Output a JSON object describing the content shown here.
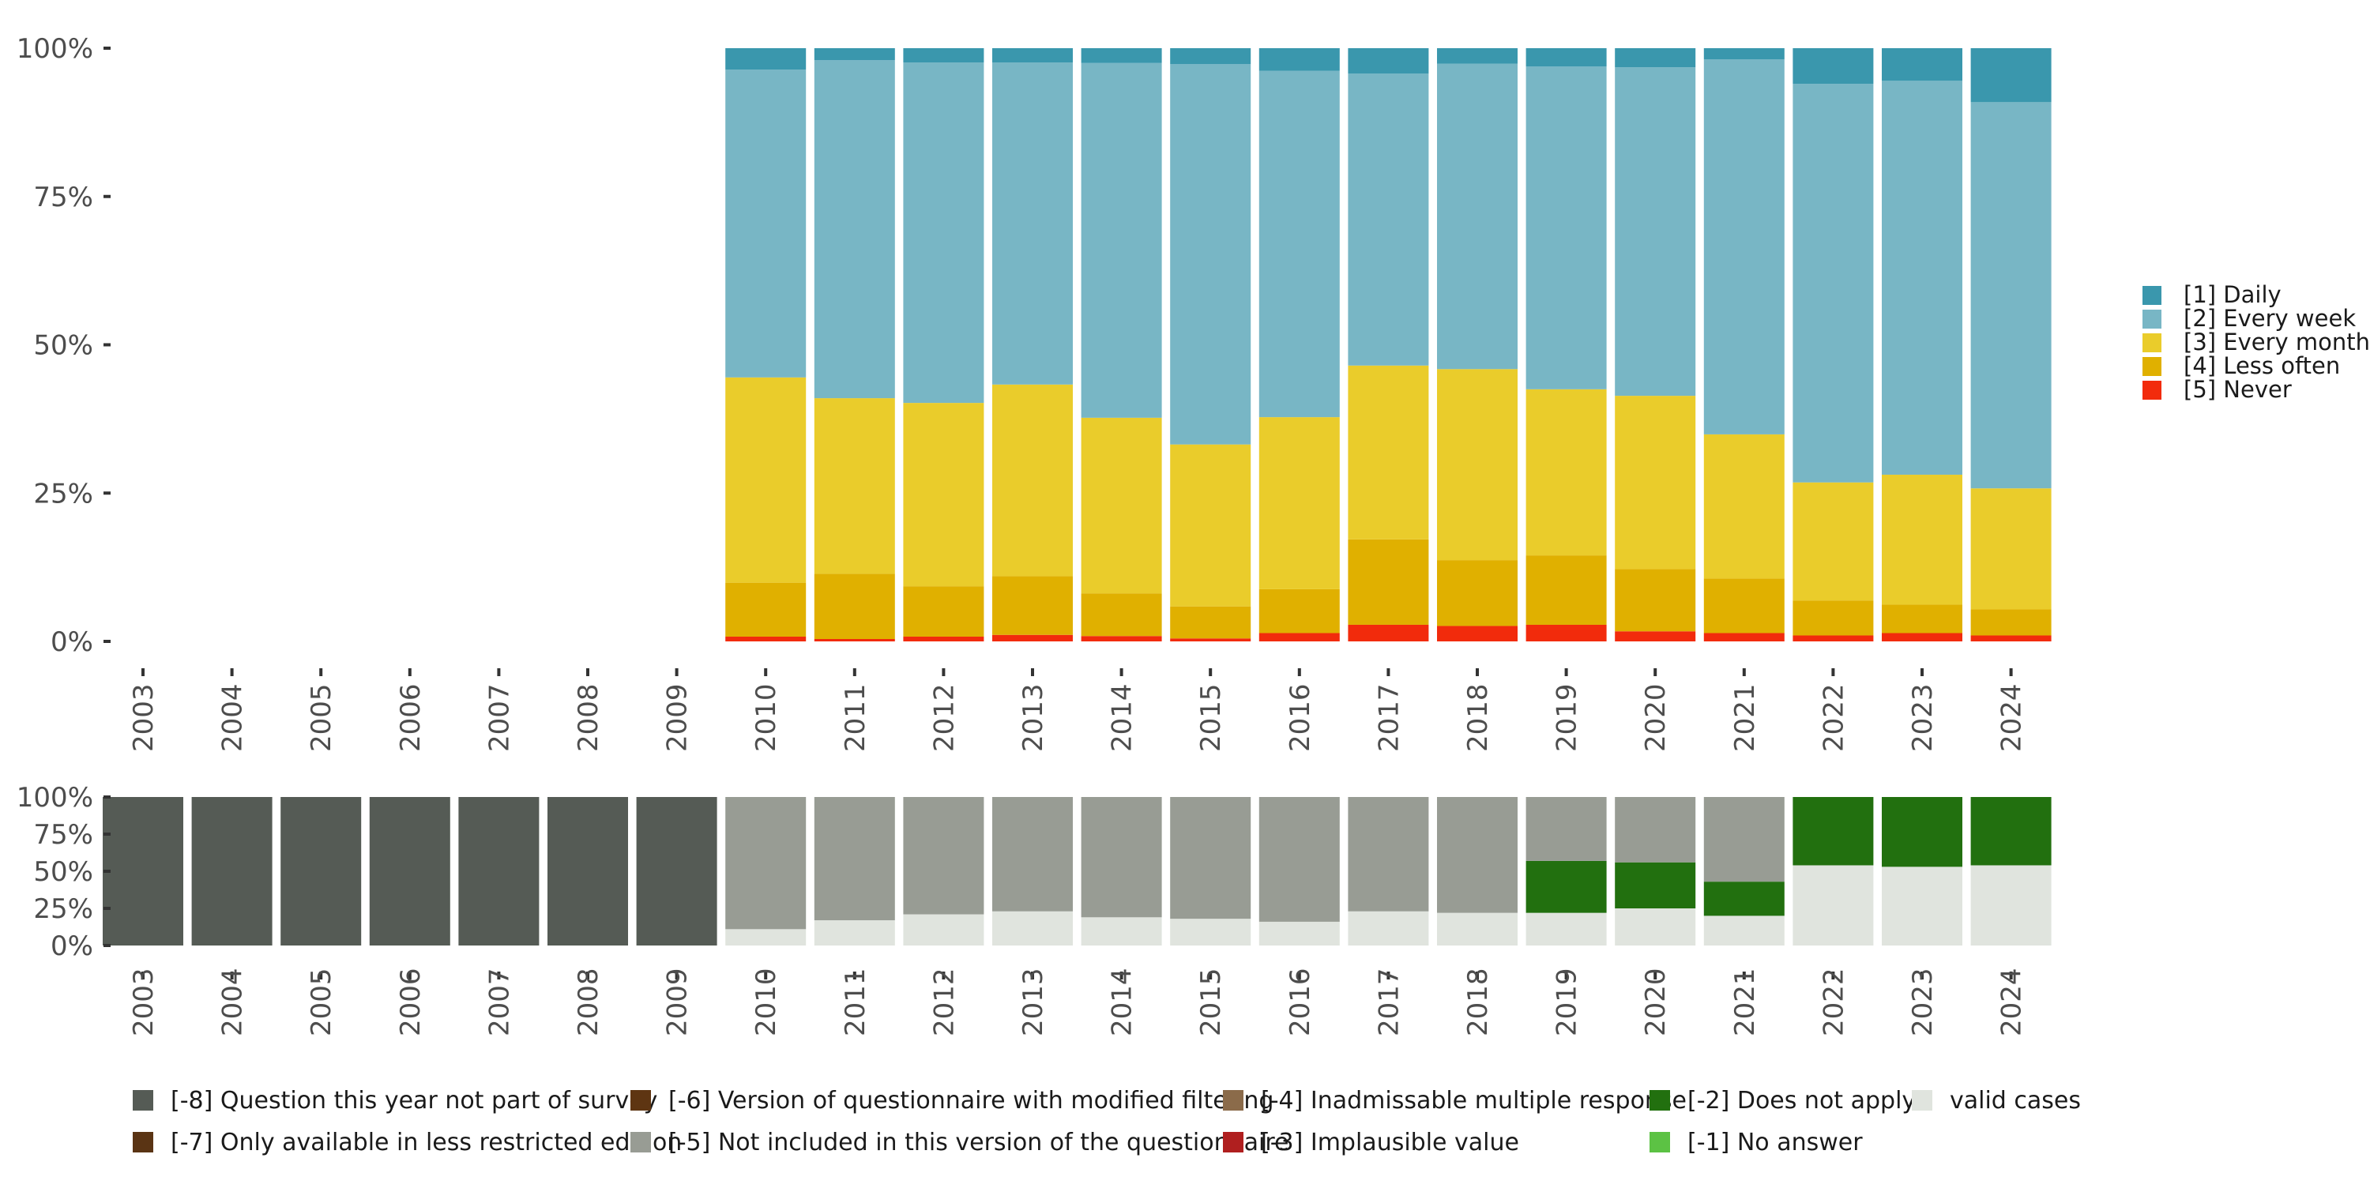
{
  "chart_data": [
    {
      "type": "bar",
      "stacked": true,
      "categories": [
        "2003",
        "2004",
        "2005",
        "2006",
        "2007",
        "2008",
        "2009",
        "2010",
        "2011",
        "2012",
        "2013",
        "2014",
        "2015",
        "2016",
        "2017",
        "2018",
        "2019",
        "2020",
        "2021",
        "2022",
        "2023",
        "2024"
      ],
      "ylim": [
        0,
        100
      ],
      "y_ticks": [
        "0%",
        "25%",
        "50%",
        "75%",
        "100%"
      ],
      "legend_position": "right",
      "series": [
        {
          "name": "[5] Never",
          "color": "#f22b0c",
          "values": [
            null,
            null,
            null,
            null,
            null,
            null,
            null,
            0.8,
            0.4,
            0.8,
            1.1,
            0.9,
            0.5,
            1.4,
            2.8,
            2.6,
            2.8,
            1.7,
            1.4,
            1.0,
            1.4,
            1.0
          ]
        },
        {
          "name": "[4] Less often",
          "color": "#e0b000",
          "values": [
            null,
            null,
            null,
            null,
            null,
            null,
            null,
            9.1,
            11.0,
            8.5,
            9.9,
            7.2,
            5.4,
            7.4,
            14.4,
            11.1,
            11.7,
            10.5,
            9.2,
            5.9,
            4.8,
            4.4
          ]
        },
        {
          "name": "[3] Every month",
          "color": "#eacc2b",
          "values": [
            null,
            null,
            null,
            null,
            null,
            null,
            null,
            34.6,
            29.6,
            30.9,
            32.3,
            29.6,
            27.3,
            29.0,
            29.3,
            32.2,
            28.0,
            29.2,
            24.3,
            19.9,
            21.9,
            20.4
          ]
        },
        {
          "name": "[2] Every week",
          "color": "#78b6c5",
          "values": [
            null,
            null,
            null,
            null,
            null,
            null,
            null,
            51.9,
            57.0,
            57.4,
            54.3,
            59.8,
            64.1,
            58.4,
            49.2,
            51.5,
            54.4,
            55.4,
            63.2,
            67.2,
            66.4,
            65.1
          ]
        },
        {
          "name": "[1] Daily",
          "color": "#3a97ad",
          "values": [
            null,
            null,
            null,
            null,
            null,
            null,
            null,
            3.6,
            2.0,
            2.4,
            2.4,
            2.5,
            2.7,
            3.8,
            4.3,
            2.6,
            3.1,
            3.2,
            1.9,
            6.0,
            5.5,
            9.1
          ]
        }
      ]
    },
    {
      "type": "bar",
      "stacked": true,
      "categories": [
        "2003",
        "2004",
        "2005",
        "2006",
        "2007",
        "2008",
        "2009",
        "2010",
        "2011",
        "2012",
        "2013",
        "2014",
        "2015",
        "2016",
        "2017",
        "2018",
        "2019",
        "2020",
        "2021",
        "2022",
        "2023",
        "2024"
      ],
      "ylim": [
        0,
        100
      ],
      "y_ticks": [
        "0%",
        "25%",
        "50%",
        "75%",
        "100%"
      ],
      "legend_position": "bottom",
      "series": [
        {
          "name": "valid cases",
          "color": "#e0e4de",
          "values": [
            0,
            0,
            0,
            0,
            0,
            0,
            0,
            11,
            17,
            21,
            23,
            19,
            18,
            16,
            23,
            22,
            22,
            25,
            20,
            54,
            53,
            54
          ]
        },
        {
          "name": "[-2] Does not apply",
          "color": "#22700f",
          "values": [
            0,
            0,
            0,
            0,
            0,
            0,
            0,
            0,
            0,
            0,
            0,
            0,
            0,
            0,
            0,
            0,
            35,
            31,
            23,
            46,
            47,
            46
          ]
        },
        {
          "name": "[-5] Not included in this version of the questionnaire",
          "color": "#989c94",
          "values": [
            0,
            0,
            0,
            0,
            0,
            0,
            0,
            89,
            83,
            79,
            77,
            81,
            82,
            84,
            77,
            78,
            43,
            44,
            57,
            0,
            0,
            0
          ]
        },
        {
          "name": "[-8] Question this year not part of survey",
          "color": "#555b55",
          "values": [
            100,
            100,
            100,
            100,
            100,
            100,
            100,
            0,
            0,
            0,
            0,
            0,
            0,
            0,
            0,
            0,
            0,
            0,
            0,
            0,
            0,
            0
          ]
        }
      ],
      "legend": [
        {
          "name": "[-8] Question this year not part of survey",
          "color": "#555b55"
        },
        {
          "name": "[-7] Only available in less restricted edition",
          "color": "#5a3414"
        },
        {
          "name": "[-6] Version of questionnaire with modified filtering",
          "color": "#5e3512"
        },
        {
          "name": "[-5] Not included in this version of the questionnaire",
          "color": "#989c94"
        },
        {
          "name": "[-4] Inadmissable multiple response",
          "color": "#8b6b4a"
        },
        {
          "name": "[-3] Implausible value",
          "color": "#b01f1f"
        },
        {
          "name": "[-2] Does not apply",
          "color": "#22700f"
        },
        {
          "name": "[-1] No answer",
          "color": "#5cc244"
        },
        {
          "name": "valid cases",
          "color": "#e0e4de"
        }
      ]
    }
  ]
}
